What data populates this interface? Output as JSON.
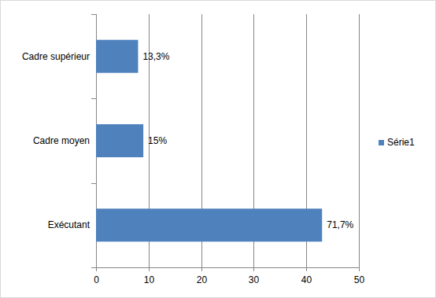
{
  "chart_data": {
    "type": "bar",
    "orientation": "horizontal",
    "categories": [
      "Cadre supérieur",
      "Cadre moyen",
      "Exécutant"
    ],
    "series": [
      {
        "name": "Série1",
        "color": "#4f81bd",
        "values": [
          8,
          9,
          43
        ],
        "value_labels": [
          "13,3%",
          "15%",
          "71,7%"
        ]
      }
    ],
    "xlim": [
      0,
      50
    ],
    "xticks": [
      0,
      10,
      20,
      30,
      40,
      50
    ],
    "grid": true,
    "legend": "right",
    "data_labels": true
  }
}
